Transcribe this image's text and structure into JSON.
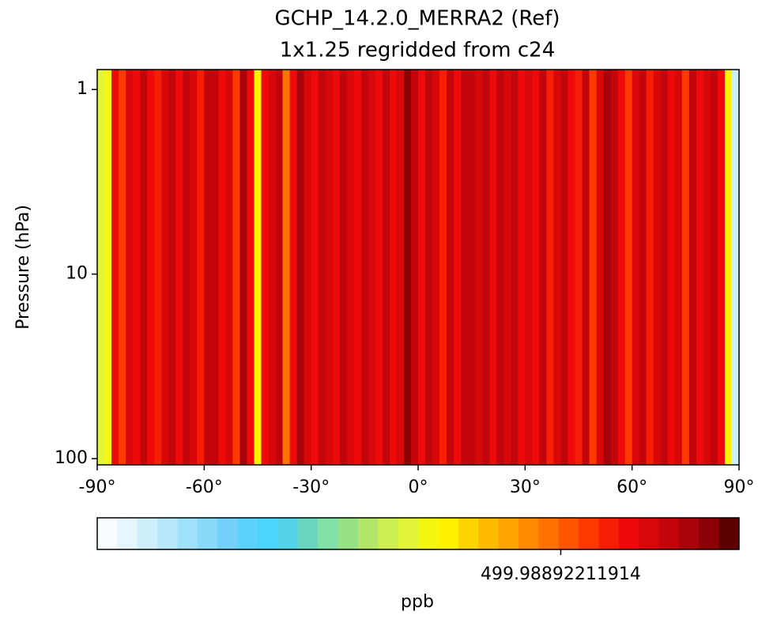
{
  "chart_data": {
    "type": "heatmap",
    "title": "GCHP_14.2.0_MERRA2 (Ref)",
    "subtitle": "1x1.25 regridded from c24",
    "ylabel": "Pressure (hPa)",
    "xbins": [
      -90,
      -88,
      -86,
      -84,
      -82,
      -80,
      -78,
      -76,
      -74,
      -72,
      -70,
      -68,
      -66,
      -64,
      -62,
      -60,
      -58,
      -56,
      -54,
      -52,
      -50,
      -48,
      -46,
      -44,
      -42,
      -40,
      -38,
      -36,
      -34,
      -32,
      -30,
      -28,
      -26,
      -24,
      -22,
      -20,
      -18,
      -16,
      -14,
      -12,
      -10,
      -8,
      -6,
      -4,
      -2,
      0,
      2,
      4,
      6,
      8,
      10,
      12,
      14,
      16,
      18,
      20,
      22,
      24,
      26,
      28,
      30,
      32,
      34,
      36,
      38,
      40,
      42,
      44,
      46,
      48,
      50,
      52,
      54,
      56,
      58,
      60,
      62,
      64,
      66,
      68,
      70,
      72,
      74,
      76,
      78,
      80,
      82,
      84,
      86,
      88,
      90
    ],
    "values": [
      499.9737,
      499.9757,
      499.9957,
      499.9917,
      499.9977,
      499.9957,
      499.9997,
      499.9957,
      499.9937,
      499.9977,
      499.9997,
      499.9957,
      499.9997,
      499.9977,
      499.9937,
      499.9997,
      499.9997,
      499.9957,
      499.9977,
      499.9917,
      500.0017,
      499.9957,
      499.9777,
      499.9957,
      499.9977,
      499.9997,
      499.9877,
      499.9957,
      500.0017,
      499.9977,
      499.9957,
      499.9997,
      499.9977,
      499.9957,
      499.9997,
      499.9977,
      499.9957,
      499.9997,
      499.9977,
      499.9957,
      499.9997,
      499.9957,
      499.9977,
      500.0037,
      499.9997,
      499.9957,
      499.9997,
      499.9977,
      499.9937,
      499.9997,
      499.9957,
      499.9997,
      499.9997,
      499.9977,
      499.9997,
      499.9957,
      499.9997,
      499.9977,
      499.9997,
      499.9957,
      499.9977,
      499.9957,
      499.9997,
      499.9937,
      499.9977,
      499.9997,
      499.9957,
      499.9937,
      499.9997,
      499.9917,
      499.9977,
      500.0017,
      499.9997,
      499.9957,
      499.9917,
      499.9977,
      499.9997,
      499.9937,
      499.9977,
      499.9997,
      499.9957,
      499.9977,
      499.9917,
      499.9997,
      499.9957,
      499.9977,
      499.9997,
      499.9957,
      499.9777,
      499.9477
    ],
    "xlim": [
      -90,
      90
    ],
    "xticks": [
      {
        "value": -90,
        "label": "-90°"
      },
      {
        "value": -60,
        "label": "-60°"
      },
      {
        "value": -30,
        "label": "-30°"
      },
      {
        "value": 0,
        "label": "0°"
      },
      {
        "value": 30,
        "label": "30°"
      },
      {
        "value": 60,
        "label": "60°"
      },
      {
        "value": 90,
        "label": "90°"
      }
    ],
    "ylim": [
      108,
      0.78
    ],
    "yticks": [
      1,
      10,
      100
    ],
    "log_y": true,
    "colorbar": {
      "label": "ppb",
      "clim": [
        499.9427,
        500.0067
      ],
      "ticks": [
        499.98892211914
      ],
      "colors": [
        "#f7fcff",
        "#e6f6fd",
        "#cdeefb",
        "#b8e8fa",
        "#9fe1fa",
        "#8ad9fb",
        "#73d0fb",
        "#5bd1fb",
        "#4dd4fa",
        "#53d3e6",
        "#6ad6c0",
        "#82e0a6",
        "#98e084",
        "#b5e66c",
        "#cdee52",
        "#e2f53b",
        "#f3f712",
        "#fff200",
        "#ffd500",
        "#ffbb00",
        "#ffa400",
        "#ff8a00",
        "#ff7200",
        "#ff5500",
        "#ff3a00",
        "#f81e05",
        "#ee0a0a",
        "#d8080a",
        "#c2050a",
        "#a8030a",
        "#8a0205",
        "#5c0000"
      ]
    }
  }
}
